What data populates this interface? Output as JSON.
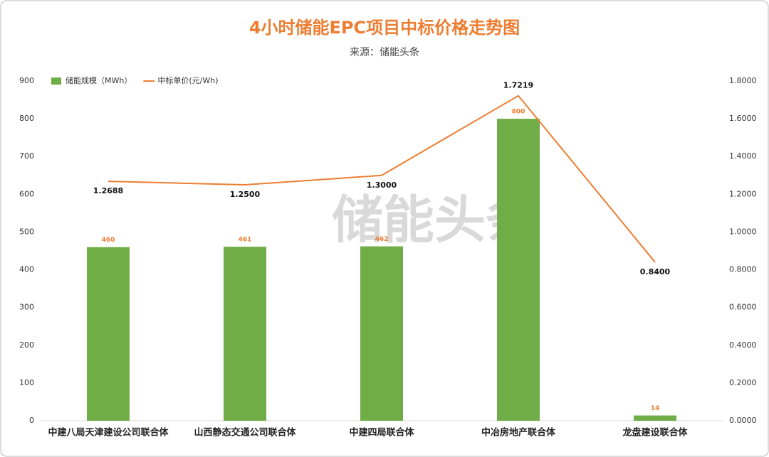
{
  "chart_data": {
    "type": "bar-line",
    "title": "4小时储能EPC项目中标价格走势图",
    "subtitle": "来源：储能头条",
    "watermark": "储能头条",
    "categories": [
      "中建八局天津建设公司联合体",
      "山西静态交通公司联合体",
      "中建四局联合体",
      "中冶房地产联合体",
      "龙盘建设联合体"
    ],
    "series": [
      {
        "name": "储能规模（MWh）",
        "type": "bar",
        "color": "#70ad47",
        "values": [
          460,
          461,
          462,
          800,
          14
        ]
      },
      {
        "name": "中标单价(元/Wh)",
        "type": "line",
        "axis": "y2",
        "color": "#ed7d31",
        "values": [
          1.2688,
          1.25,
          1.3,
          1.7219,
          0.84
        ],
        "value_labels": [
          "1.2688",
          "1.2500",
          "1.3000",
          "1.7219",
          "0.8400"
        ]
      }
    ],
    "ylim": [
      0,
      900
    ],
    "yticks": [
      0,
      100,
      200,
      300,
      400,
      500,
      600,
      700,
      800,
      900
    ],
    "y2lim": [
      0,
      1.8
    ],
    "y2ticks": [
      {
        "value": 0,
        "label": "0.0000"
      },
      {
        "value": 0.2,
        "label": "0.2000"
      },
      {
        "value": 0.4,
        "label": "0.4000"
      },
      {
        "value": 0.6,
        "label": "0.6000"
      },
      {
        "value": 0.8,
        "label": "0.8000"
      },
      {
        "value": 1,
        "label": "1.0000"
      },
      {
        "value": 1.2,
        "label": "1.2000"
      },
      {
        "value": 1.4,
        "label": "1.4000"
      },
      {
        "value": 1.6,
        "label": "1.6000"
      },
      {
        "value": 1.8,
        "label": "1.8000"
      }
    ],
    "legend": "top-left",
    "grid": false
  }
}
